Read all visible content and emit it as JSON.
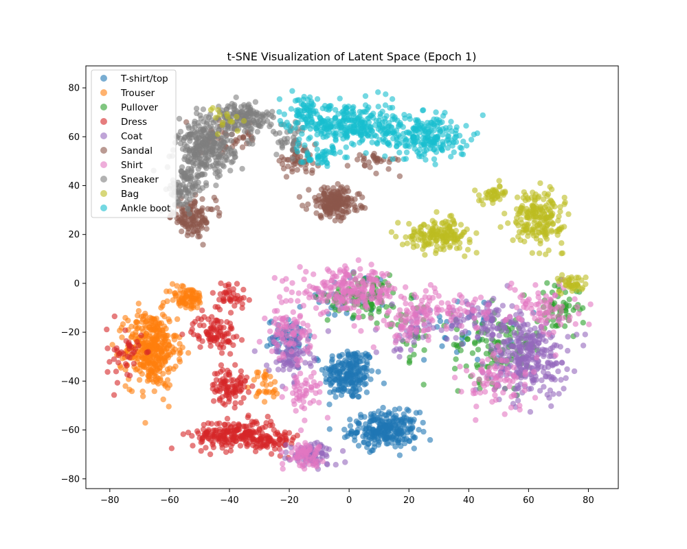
{
  "chart_data": {
    "type": "scatter",
    "title": "t-SNE Visualization of Latent Space (Epoch 1)",
    "xlabel": "",
    "ylabel": "",
    "xlim": [
      -88,
      90
    ],
    "ylim": [
      -84,
      89
    ],
    "x_ticks": [
      -80,
      -60,
      -40,
      -20,
      0,
      20,
      40,
      60,
      80
    ],
    "y_ticks": [
      -80,
      -60,
      -40,
      -20,
      0,
      20,
      40,
      60,
      80
    ],
    "x_tick_labels": [
      "−80",
      "−60",
      "−40",
      "−20",
      "0",
      "20",
      "40",
      "60",
      "80"
    ],
    "y_tick_labels": [
      "−80",
      "−60",
      "−40",
      "−20",
      "0",
      "20",
      "40",
      "60",
      "80"
    ],
    "grid": false,
    "legend_position": "upper-left",
    "marker_alpha": 0.6,
    "series": [
      {
        "name": "T-shirt/top",
        "color": "#1f77b4",
        "clusters": [
          [
            0,
            -37,
            7,
            9,
            220
          ],
          [
            12,
            -60,
            9,
            6,
            260
          ],
          [
            -20,
            -22,
            6,
            6,
            60
          ],
          [
            40,
            -20,
            12,
            10,
            30
          ],
          [
            0,
            -5,
            12,
            8,
            40
          ]
        ]
      },
      {
        "name": "Trouser",
        "color": "#ff7f0e",
        "clusters": [
          [
            -66,
            -27,
            7,
            13,
            380
          ],
          [
            -54,
            -6,
            5,
            4,
            80
          ],
          [
            -28,
            -42,
            4,
            6,
            30
          ]
        ]
      },
      {
        "name": "Pullover",
        "color": "#2ca02c",
        "clusters": [
          [
            5,
            -5,
            10,
            7,
            90
          ],
          [
            50,
            -25,
            13,
            13,
            120
          ],
          [
            70,
            -10,
            6,
            8,
            60
          ],
          [
            20,
            -20,
            8,
            10,
            30
          ]
        ]
      },
      {
        "name": "Dress",
        "color": "#d62728",
        "clusters": [
          [
            -38,
            -62,
            12,
            5,
            220
          ],
          [
            -40,
            -42,
            5,
            6,
            90
          ],
          [
            -45,
            -20,
            6,
            6,
            90
          ],
          [
            -40,
            -5,
            5,
            5,
            40
          ],
          [
            -25,
            -65,
            6,
            4,
            50
          ],
          [
            -75,
            -30,
            5,
            10,
            40
          ]
        ]
      },
      {
        "name": "Coat",
        "color": "#9467bd",
        "clusters": [
          [
            60,
            -30,
            11,
            13,
            280
          ],
          [
            45,
            -15,
            10,
            8,
            90
          ],
          [
            -20,
            -30,
            6,
            8,
            80
          ],
          [
            -12,
            -70,
            7,
            4,
            80
          ],
          [
            20,
            -20,
            6,
            8,
            40
          ]
        ]
      },
      {
        "name": "Sandal",
        "color": "#8c564b",
        "clusters": [
          [
            -5,
            33,
            7,
            5,
            200
          ],
          [
            -52,
            27,
            6,
            6,
            120
          ],
          [
            -18,
            50,
            6,
            4,
            50
          ],
          [
            10,
            50,
            7,
            3,
            30
          ],
          [
            -40,
            60,
            8,
            6,
            40
          ]
        ]
      },
      {
        "name": "Shirt",
        "color": "#e377c2",
        "clusters": [
          [
            0,
            -3,
            14,
            7,
            220
          ],
          [
            20,
            -15,
            8,
            8,
            80
          ],
          [
            -20,
            -20,
            6,
            8,
            80
          ],
          [
            -15,
            -45,
            5,
            8,
            50
          ],
          [
            -15,
            -70,
            5,
            4,
            60
          ],
          [
            65,
            -10,
            10,
            10,
            80
          ],
          [
            50,
            -40,
            10,
            10,
            80
          ],
          [
            35,
            -10,
            10,
            8,
            60
          ]
        ]
      },
      {
        "name": "Sneaker",
        "color": "#7f7f7f",
        "clusters": [
          [
            -48,
            55,
            8,
            10,
            300
          ],
          [
            -35,
            68,
            8,
            5,
            140
          ],
          [
            -55,
            38,
            5,
            7,
            80
          ],
          [
            -20,
            60,
            5,
            6,
            40
          ]
        ]
      },
      {
        "name": "Bag",
        "color": "#bcbd22",
        "clusters": [
          [
            30,
            20,
            9,
            5,
            170
          ],
          [
            63,
            27,
            7,
            9,
            200
          ],
          [
            48,
            36,
            5,
            3,
            40
          ],
          [
            75,
            0,
            4,
            3,
            40
          ],
          [
            -40,
            65,
            6,
            8,
            15
          ]
        ]
      },
      {
        "name": "Ankle boot",
        "color": "#17becf",
        "clusters": [
          [
            0,
            65,
            12,
            8,
            260
          ],
          [
            25,
            60,
            12,
            8,
            230
          ],
          [
            -15,
            70,
            5,
            6,
            70
          ],
          [
            -10,
            52,
            6,
            3,
            40
          ]
        ]
      }
    ]
  }
}
